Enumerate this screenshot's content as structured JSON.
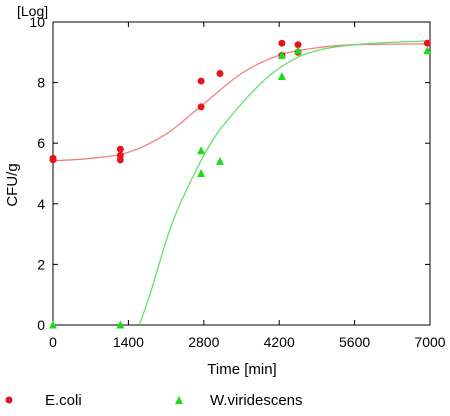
{
  "chart_data": {
    "type": "scatter",
    "ylabel": "CFU/g",
    "yunit_note": "[Log]",
    "xlabel": "Time [min]",
    "xlim": [
      0,
      7000
    ],
    "ylim": [
      0,
      10
    ],
    "xticks": [
      0,
      1400,
      2800,
      4200,
      5600,
      7000
    ],
    "yticks": [
      0,
      2,
      4,
      6,
      8,
      10
    ],
    "grid": false,
    "legend_position": "bottom",
    "series": [
      {
        "name": "E.coli",
        "marker": "circle",
        "color": "#e8141c",
        "curve_color": "#f08080",
        "points": [
          [
            0,
            5.45
          ],
          [
            0,
            5.5
          ],
          [
            1250,
            5.8
          ],
          [
            1250,
            5.6
          ],
          [
            1250,
            5.45
          ],
          [
            2750,
            8.05
          ],
          [
            2750,
            7.2
          ],
          [
            3100,
            8.3
          ],
          [
            4250,
            9.3
          ],
          [
            4250,
            8.9
          ],
          [
            4550,
            9.25
          ],
          [
            4550,
            9.0
          ],
          [
            6950,
            9.3
          ]
        ],
        "fit": [
          [
            0,
            5.42
          ],
          [
            700,
            5.5
          ],
          [
            1400,
            5.7
          ],
          [
            2100,
            6.3
          ],
          [
            2800,
            7.3
          ],
          [
            3500,
            8.3
          ],
          [
            4200,
            8.9
          ],
          [
            4900,
            9.15
          ],
          [
            5600,
            9.25
          ],
          [
            7000,
            9.28
          ]
        ]
      },
      {
        "name": "W.viridescens",
        "marker": "triangle",
        "color": "#1adc1a",
        "curve_color": "#66e066",
        "points": [
          [
            0,
            0
          ],
          [
            1250,
            0
          ],
          [
            2750,
            5.75
          ],
          [
            2750,
            5.0
          ],
          [
            3100,
            5.4
          ],
          [
            4250,
            8.9
          ],
          [
            4250,
            8.2
          ],
          [
            4550,
            9.05
          ],
          [
            6950,
            9.05
          ]
        ],
        "fit": [
          [
            1600,
            0
          ],
          [
            1800,
            1.0
          ],
          [
            2200,
            3.3
          ],
          [
            2600,
            4.9
          ],
          [
            3000,
            6.2
          ],
          [
            3500,
            7.3
          ],
          [
            4000,
            8.2
          ],
          [
            4500,
            8.8
          ],
          [
            5000,
            9.1
          ],
          [
            5600,
            9.25
          ],
          [
            6200,
            9.32
          ],
          [
            7000,
            9.38
          ]
        ]
      }
    ]
  }
}
